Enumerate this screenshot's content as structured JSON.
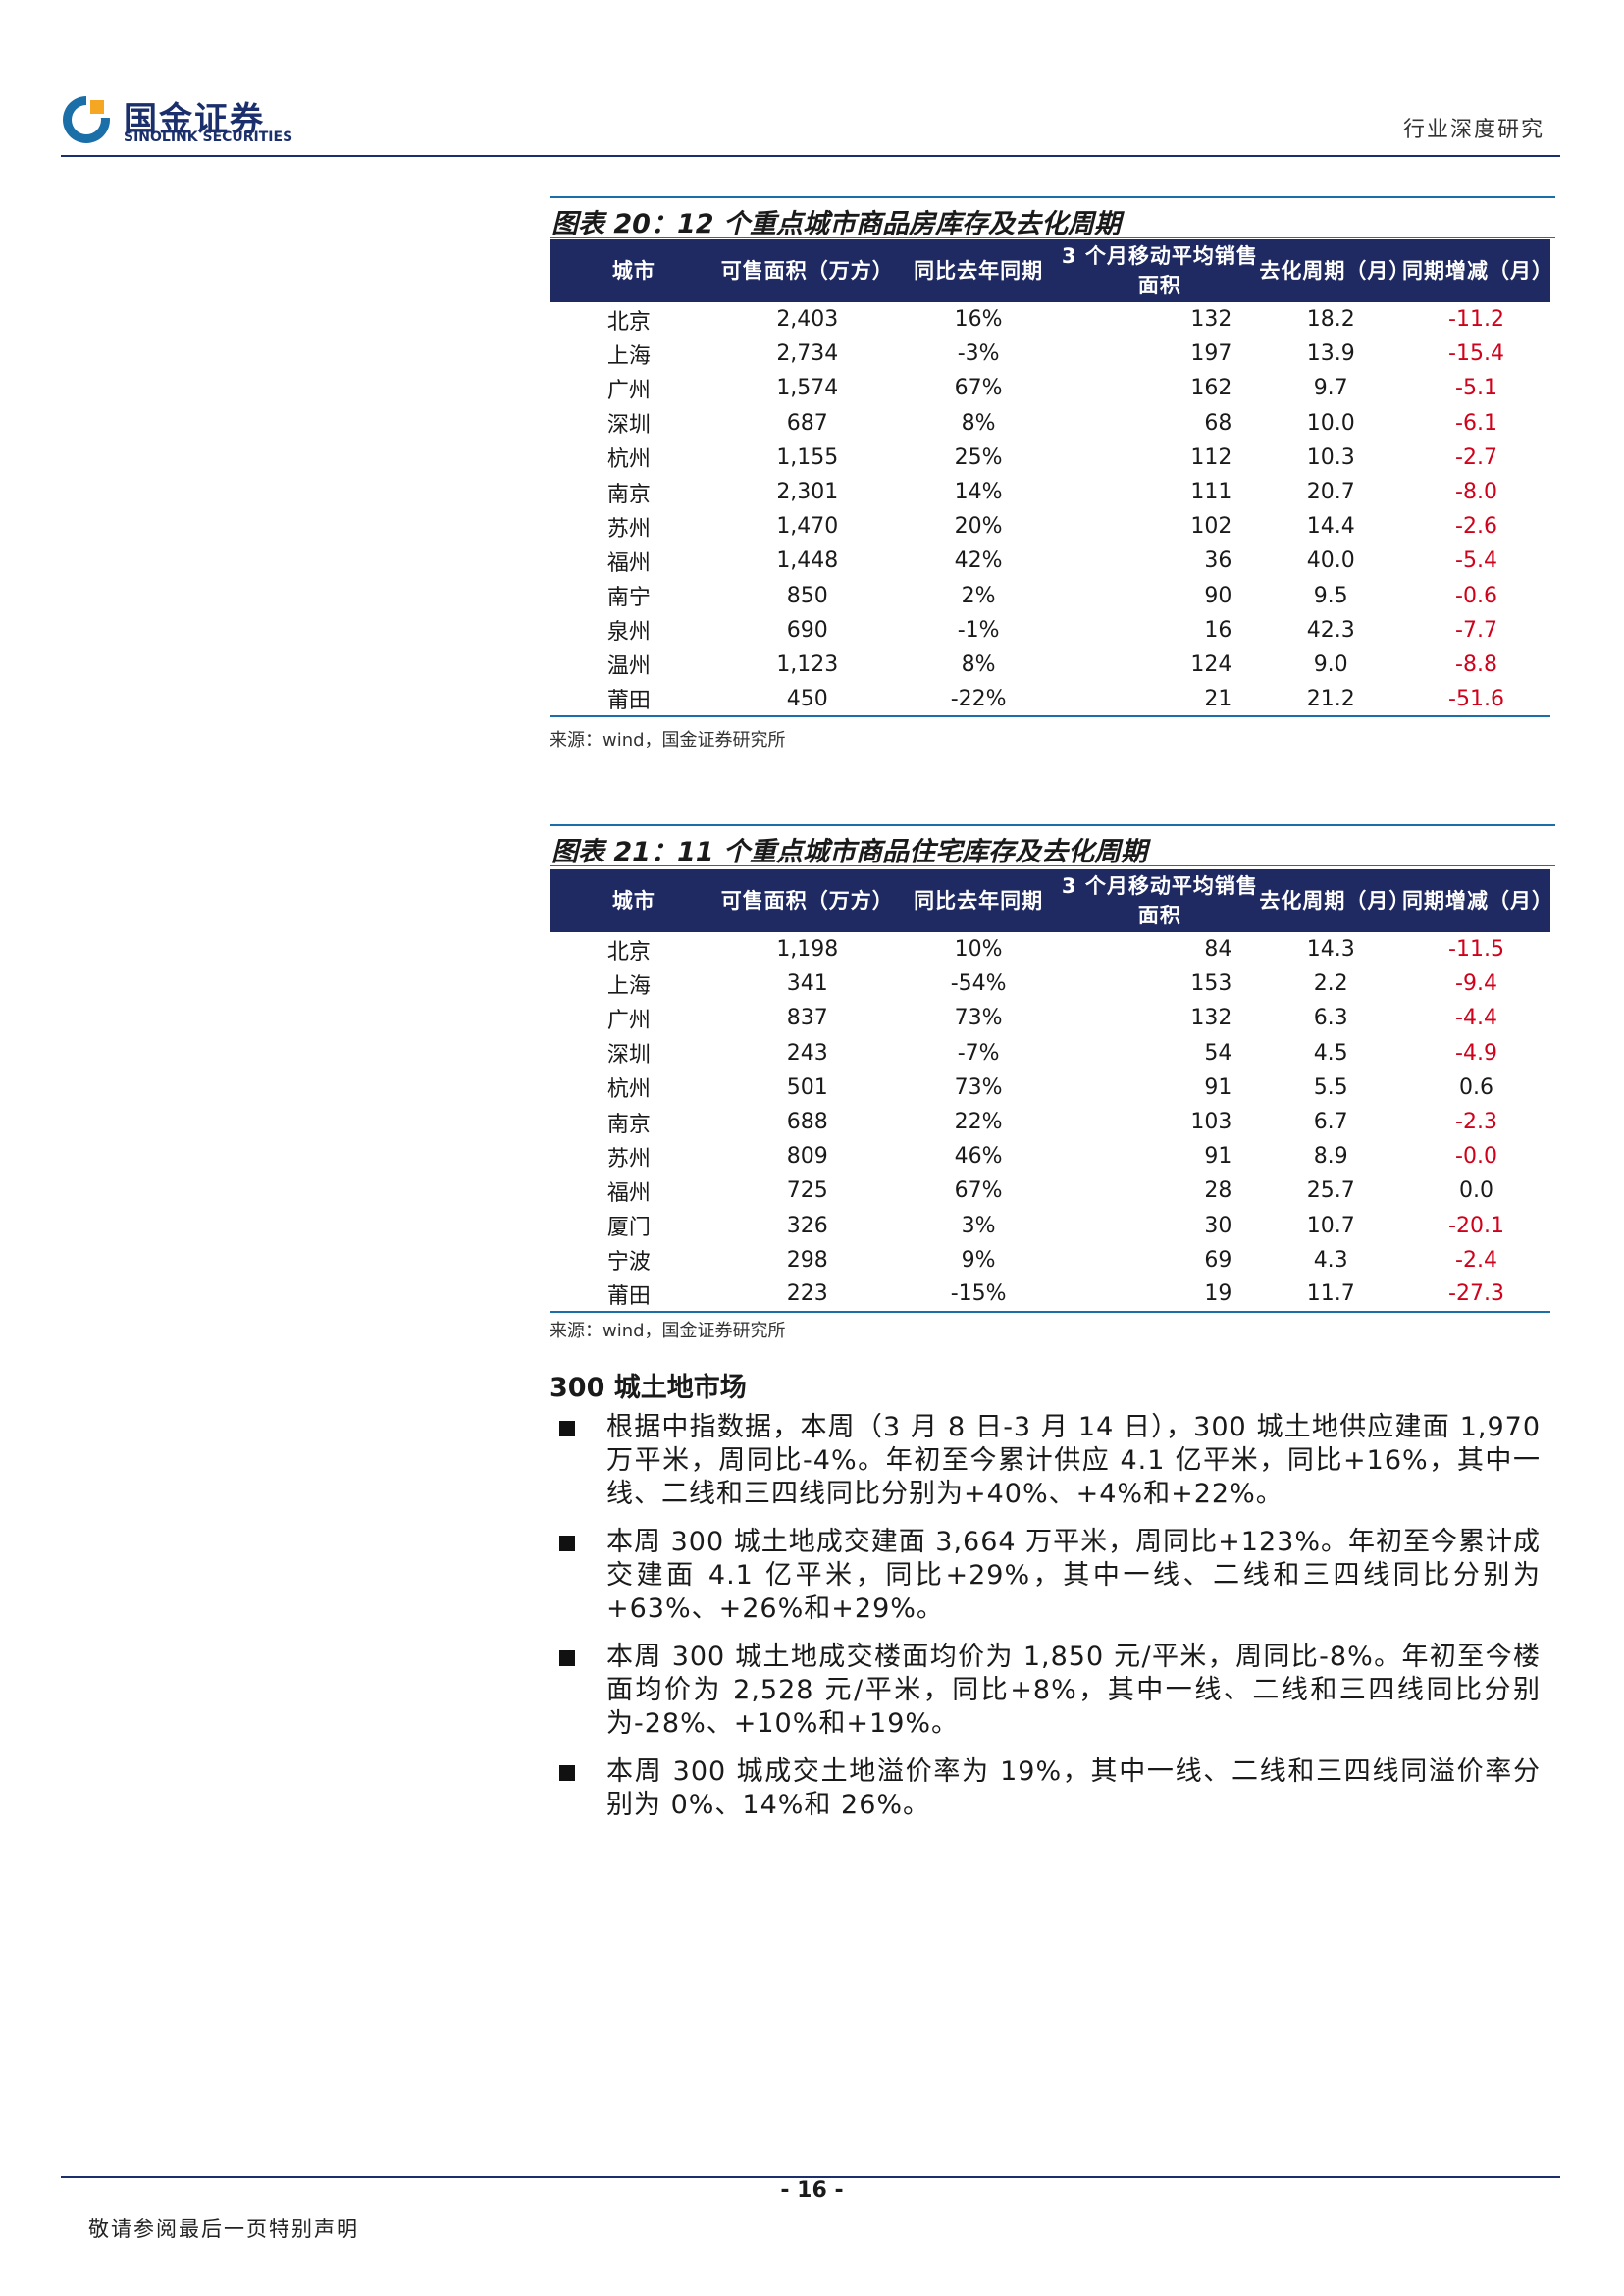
{
  "header": {
    "logo_cn": "国金证券",
    "logo_en": "SINOLINK SECURITIES",
    "right_label": "行业深度研究"
  },
  "figure20": {
    "title": "图表 20：12 个重点城市商品房库存及去化周期",
    "headers": [
      "城市",
      "可售面积（万方）",
      "同比去年同期",
      "3 个月移动平均销售面积",
      "去化周期（月）",
      "同期增减（月）"
    ],
    "rows": [
      {
        "city": "北京",
        "area": "2,403",
        "yoy": "16%",
        "avg": "132",
        "cycle": "18.2",
        "chg": "-11.2"
      },
      {
        "city": "上海",
        "area": "2,734",
        "yoy": "-3%",
        "avg": "197",
        "cycle": "13.9",
        "chg": "-15.4"
      },
      {
        "city": "广州",
        "area": "1,574",
        "yoy": "67%",
        "avg": "162",
        "cycle": "9.7",
        "chg": "-5.1"
      },
      {
        "city": "深圳",
        "area": "687",
        "yoy": "8%",
        "avg": "68",
        "cycle": "10.0",
        "chg": "-6.1"
      },
      {
        "city": "杭州",
        "area": "1,155",
        "yoy": "25%",
        "avg": "112",
        "cycle": "10.3",
        "chg": "-2.7"
      },
      {
        "city": "南京",
        "area": "2,301",
        "yoy": "14%",
        "avg": "111",
        "cycle": "20.7",
        "chg": "-8.0"
      },
      {
        "city": "苏州",
        "area": "1,470",
        "yoy": "20%",
        "avg": "102",
        "cycle": "14.4",
        "chg": "-2.6"
      },
      {
        "city": "福州",
        "area": "1,448",
        "yoy": "42%",
        "avg": "36",
        "cycle": "40.0",
        "chg": "-5.4"
      },
      {
        "city": "南宁",
        "area": "850",
        "yoy": "2%",
        "avg": "90",
        "cycle": "9.5",
        "chg": "-0.6"
      },
      {
        "city": "泉州",
        "area": "690",
        "yoy": "-1%",
        "avg": "16",
        "cycle": "42.3",
        "chg": "-7.7"
      },
      {
        "city": "温州",
        "area": "1,123",
        "yoy": "8%",
        "avg": "124",
        "cycle": "9.0",
        "chg": "-8.8"
      },
      {
        "city": "莆田",
        "area": "450",
        "yoy": "-22%",
        "avg": "21",
        "cycle": "21.2",
        "chg": "-51.6"
      }
    ],
    "source": "来源：wind，国金证券研究所"
  },
  "figure21": {
    "title": "图表 21：11 个重点城市商品住宅库存及去化周期",
    "headers": [
      "城市",
      "可售面积（万方）",
      "同比去年同期",
      "3 个月移动平均销售面积",
      "去化周期（月）",
      "同期增减（月）"
    ],
    "rows": [
      {
        "city": "北京",
        "area": "1,198",
        "yoy": "10%",
        "avg": "84",
        "cycle": "14.3",
        "chg": "-11.5"
      },
      {
        "city": "上海",
        "area": "341",
        "yoy": "-54%",
        "avg": "153",
        "cycle": "2.2",
        "chg": "-9.4"
      },
      {
        "city": "广州",
        "area": "837",
        "yoy": "73%",
        "avg": "132",
        "cycle": "6.3",
        "chg": "-4.4"
      },
      {
        "city": "深圳",
        "area": "243",
        "yoy": "-7%",
        "avg": "54",
        "cycle": "4.5",
        "chg": "-4.9"
      },
      {
        "city": "杭州",
        "area": "501",
        "yoy": "73%",
        "avg": "91",
        "cycle": "5.5",
        "chg": "0.6"
      },
      {
        "city": "南京",
        "area": "688",
        "yoy": "22%",
        "avg": "103",
        "cycle": "6.7",
        "chg": "-2.3"
      },
      {
        "city": "苏州",
        "area": "809",
        "yoy": "46%",
        "avg": "91",
        "cycle": "8.9",
        "chg": "-0.0"
      },
      {
        "city": "福州",
        "area": "725",
        "yoy": "67%",
        "avg": "28",
        "cycle": "25.7",
        "chg": "0.0"
      },
      {
        "city": "厦门",
        "area": "326",
        "yoy": "3%",
        "avg": "30",
        "cycle": "10.7",
        "chg": "-20.1"
      },
      {
        "city": "宁波",
        "area": "298",
        "yoy": "9%",
        "avg": "69",
        "cycle": "4.3",
        "chg": "-2.4"
      },
      {
        "city": "莆田",
        "area": "223",
        "yoy": "-15%",
        "avg": "19",
        "cycle": "11.7",
        "chg": "-27.3"
      }
    ],
    "source": "来源：wind，国金证券研究所"
  },
  "section": {
    "title": "300 城土地市场",
    "bullets": [
      "根据中指数据，本周（3 月 8 日-3 月 14 日），300 城土地供应建面 1,970 万平米，周同比-4%。年初至今累计供应 4.1 亿平米，同比+16%，其中一线、二线和三四线同比分别为+40%、+4%和+22%。",
      "本周 300 城土地成交建面 3,664 万平米，周同比+123%。年初至今累计成交建面 4.1 亿平米，同比+29%，其中一线、二线和三四线同比分别为+63%、+26%和+29%。",
      "本周 300 城土地成交楼面均价为 1,850 元/平米，周同比-8%。年初至今楼面均价为 2,528 元/平米，同比+8%，其中一线、二线和三四线同比分别为-28%、+10%和+19%。",
      "本周 300 城成交土地溢价率为 19%，其中一线、二线和三四线同溢价率分别为 0%、14%和 26%。"
    ]
  },
  "footer": {
    "page_number": "- 16 -",
    "note": "敬请参阅最后一页特别声明"
  },
  "colors": {
    "brand_navy": "#1f2a63",
    "rule_blue": "#1a6fa8",
    "negative_red": "#d0021b"
  }
}
